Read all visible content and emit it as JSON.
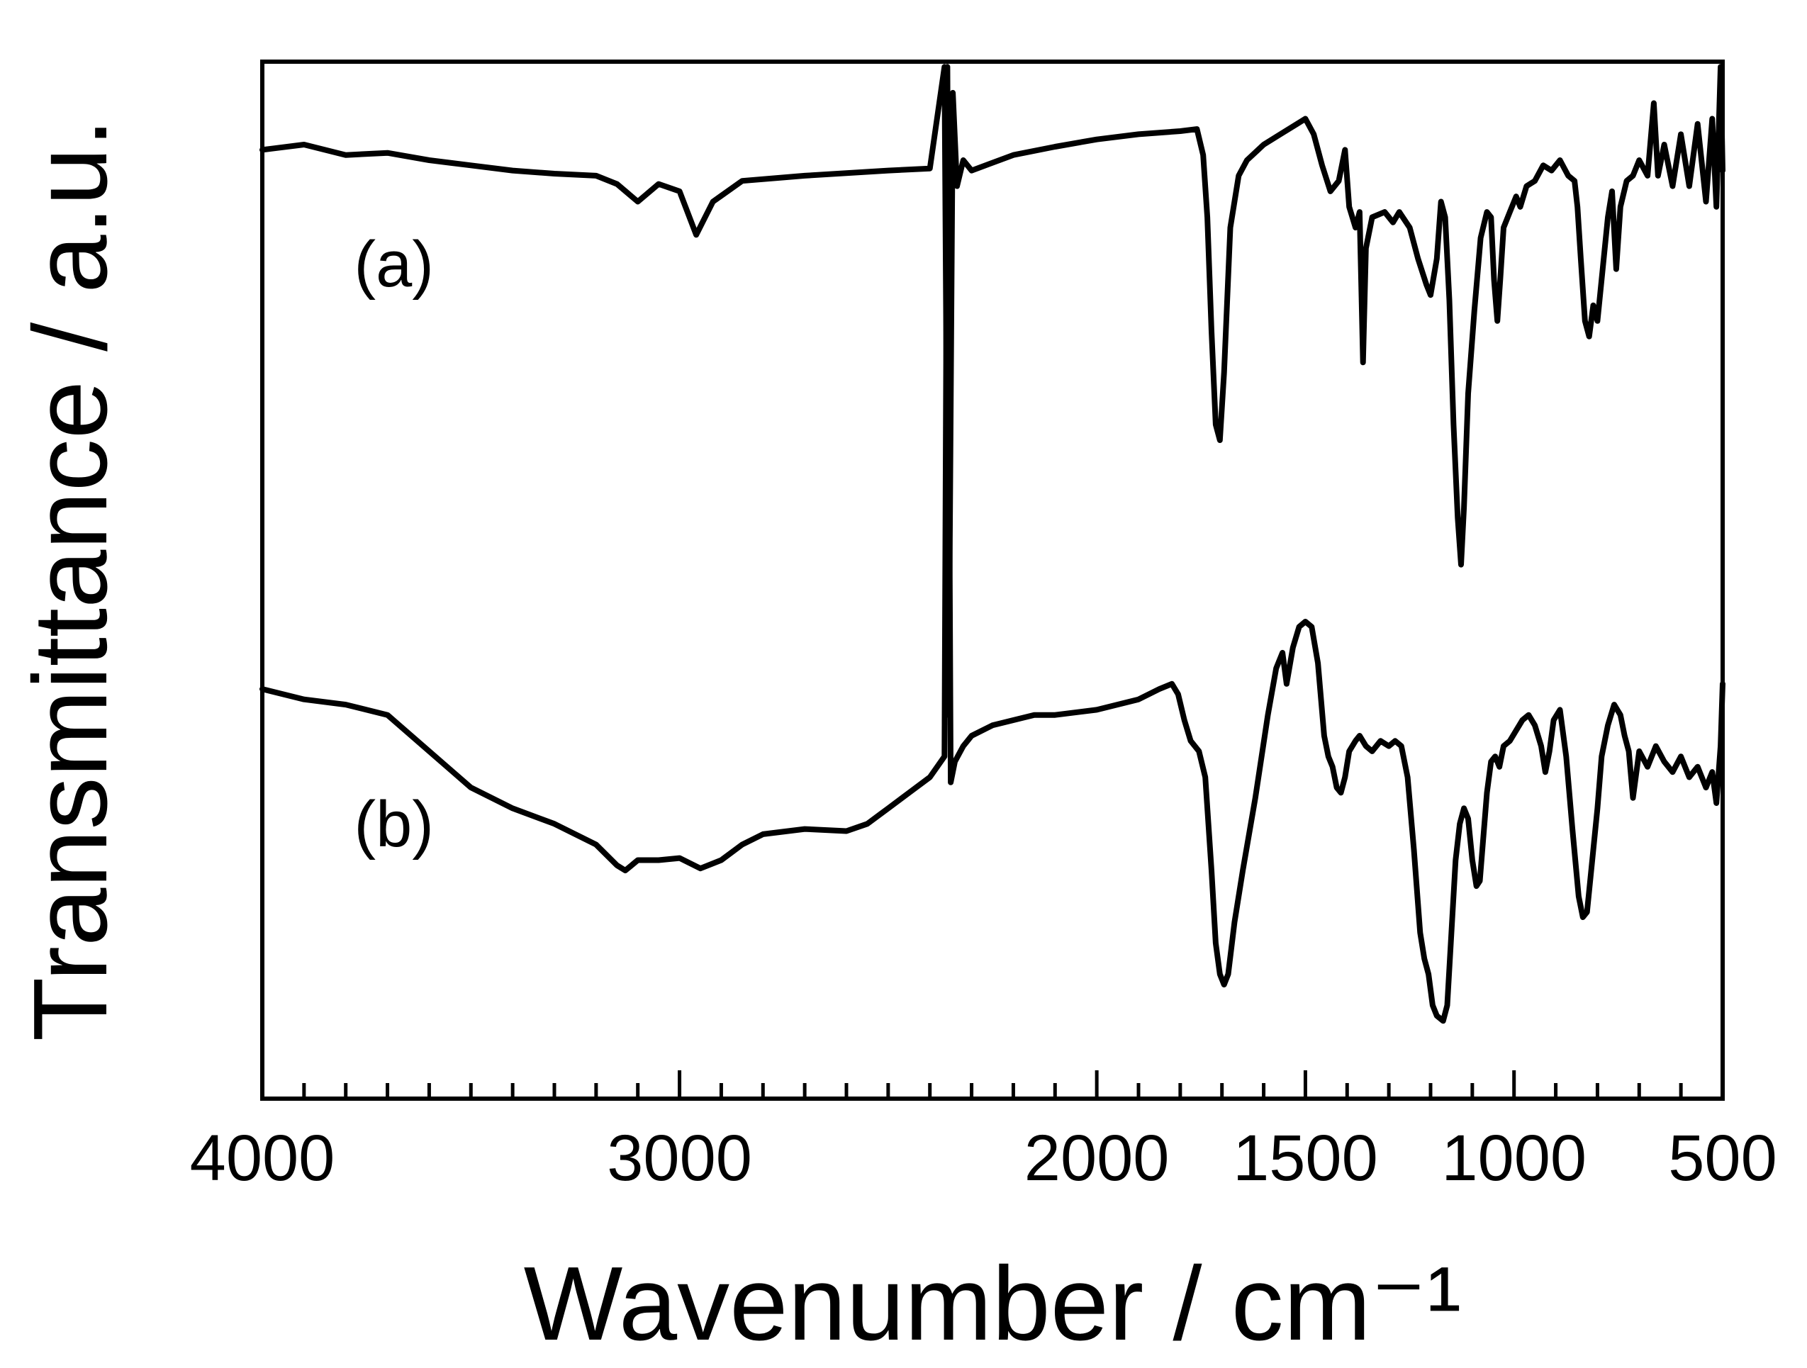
{
  "chart_data": {
    "type": "line",
    "title": "",
    "xlabel": "Wavenumber / cm⁻¹",
    "ylabel": "Transmittance / a.u.",
    "xlim": [
      4000,
      500
    ],
    "ylim": [
      0,
      100
    ],
    "x_ticks": [
      4000,
      3000,
      2000,
      1500,
      1000,
      500
    ],
    "x_tick_labels": [
      "4000",
      "3000",
      "2000",
      "1500",
      "1000",
      "500"
    ],
    "x_minor_step": 100,
    "grid": false,
    "legend": "none",
    "series": [
      {
        "name": "(a)",
        "label": "(a)",
        "color": "#000000",
        "points": [
          [
            4000,
            91.5
          ],
          [
            3900,
            92.0
          ],
          [
            3800,
            91.0
          ],
          [
            3700,
            91.2
          ],
          [
            3600,
            90.5
          ],
          [
            3500,
            90.0
          ],
          [
            3400,
            89.5
          ],
          [
            3300,
            89.2
          ],
          [
            3200,
            89.0
          ],
          [
            3150,
            88.2
          ],
          [
            3100,
            86.5
          ],
          [
            3050,
            88.2
          ],
          [
            3000,
            87.5
          ],
          [
            2960,
            83.3
          ],
          [
            2920,
            86.5
          ],
          [
            2850,
            88.5
          ],
          [
            2700,
            89.0
          ],
          [
            2500,
            89.5
          ],
          [
            2400,
            89.7
          ],
          [
            2365,
            99.5
          ],
          [
            2355,
            37.0
          ],
          [
            2345,
            97.0
          ],
          [
            2335,
            88.0
          ],
          [
            2320,
            90.5
          ],
          [
            2300,
            89.5
          ],
          [
            2200,
            91.0
          ],
          [
            2100,
            91.8
          ],
          [
            2000,
            92.5
          ],
          [
            1900,
            93.0
          ],
          [
            1800,
            93.3
          ],
          [
            1760,
            93.5
          ],
          [
            1745,
            91.0
          ],
          [
            1735,
            85.0
          ],
          [
            1725,
            74.0
          ],
          [
            1715,
            65.0
          ],
          [
            1705,
            63.5
          ],
          [
            1695,
            70.0
          ],
          [
            1680,
            84.0
          ],
          [
            1660,
            89.0
          ],
          [
            1640,
            90.5
          ],
          [
            1600,
            92.0
          ],
          [
            1560,
            93.0
          ],
          [
            1520,
            94.0
          ],
          [
            1500,
            94.5
          ],
          [
            1480,
            93.0
          ],
          [
            1460,
            90.0
          ],
          [
            1440,
            87.5
          ],
          [
            1420,
            88.5
          ],
          [
            1405,
            91.5
          ],
          [
            1395,
            86.0
          ],
          [
            1380,
            84.0
          ],
          [
            1370,
            85.5
          ],
          [
            1362,
            71.0
          ],
          [
            1355,
            82.0
          ],
          [
            1340,
            85.0
          ],
          [
            1310,
            85.5
          ],
          [
            1290,
            84.5
          ],
          [
            1275,
            85.5
          ],
          [
            1250,
            84.0
          ],
          [
            1230,
            81.0
          ],
          [
            1210,
            78.5
          ],
          [
            1200,
            77.5
          ],
          [
            1185,
            81.0
          ],
          [
            1175,
            86.5
          ],
          [
            1165,
            85.0
          ],
          [
            1155,
            77.0
          ],
          [
            1145,
            65.0
          ],
          [
            1135,
            56.0
          ],
          [
            1127,
            51.5
          ],
          [
            1120,
            57.0
          ],
          [
            1110,
            68.0
          ],
          [
            1095,
            76.0
          ],
          [
            1080,
            83.0
          ],
          [
            1065,
            85.5
          ],
          [
            1055,
            85.0
          ],
          [
            1048,
            79.0
          ],
          [
            1040,
            75.0
          ],
          [
            1033,
            79.0
          ],
          [
            1025,
            84.0
          ],
          [
            1010,
            85.5
          ],
          [
            995,
            87.0
          ],
          [
            985,
            86.0
          ],
          [
            970,
            88.0
          ],
          [
            950,
            88.5
          ],
          [
            930,
            90.0
          ],
          [
            910,
            89.5
          ],
          [
            890,
            90.5
          ],
          [
            870,
            89.0
          ],
          [
            855,
            88.5
          ],
          [
            848,
            86.0
          ],
          [
            840,
            81.0
          ],
          [
            830,
            75.0
          ],
          [
            820,
            73.5
          ],
          [
            810,
            76.5
          ],
          [
            800,
            75.0
          ],
          [
            790,
            79.0
          ],
          [
            775,
            85.0
          ],
          [
            765,
            87.5
          ],
          [
            755,
            80.0
          ],
          [
            745,
            86.0
          ],
          [
            730,
            88.5
          ],
          [
            715,
            89.0
          ],
          [
            700,
            90.5
          ],
          [
            680,
            89.0
          ],
          [
            665,
            96.0
          ],
          [
            655,
            89.0
          ],
          [
            640,
            92.0
          ],
          [
            620,
            88.0
          ],
          [
            600,
            93.0
          ],
          [
            580,
            88.0
          ],
          [
            560,
            94.0
          ],
          [
            540,
            86.5
          ],
          [
            525,
            94.5
          ],
          [
            515,
            86.0
          ],
          [
            505,
            99.5
          ],
          [
            500,
            89.5
          ]
        ]
      },
      {
        "name": "(b)",
        "label": "(b)",
        "color": "#000000",
        "points": [
          [
            4000,
            39.5
          ],
          [
            3900,
            38.5
          ],
          [
            3800,
            38.0
          ],
          [
            3700,
            37.0
          ],
          [
            3600,
            33.5
          ],
          [
            3500,
            30.0
          ],
          [
            3400,
            28.0
          ],
          [
            3300,
            26.5
          ],
          [
            3200,
            24.5
          ],
          [
            3150,
            22.5
          ],
          [
            3130,
            22.0
          ],
          [
            3100,
            23.0
          ],
          [
            3050,
            23.0
          ],
          [
            3000,
            23.2
          ],
          [
            2950,
            22.2
          ],
          [
            2900,
            23.0
          ],
          [
            2850,
            24.5
          ],
          [
            2800,
            25.5
          ],
          [
            2700,
            26.0
          ],
          [
            2600,
            25.8
          ],
          [
            2550,
            26.5
          ],
          [
            2500,
            28.0
          ],
          [
            2450,
            29.5
          ],
          [
            2400,
            31.0
          ],
          [
            2365,
            33.0
          ],
          [
            2358,
            99.5
          ],
          [
            2350,
            30.5
          ],
          [
            2340,
            32.5
          ],
          [
            2320,
            34.0
          ],
          [
            2300,
            35.0
          ],
          [
            2250,
            36.0
          ],
          [
            2200,
            36.5
          ],
          [
            2150,
            37.0
          ],
          [
            2100,
            37.0
          ],
          [
            2000,
            37.5
          ],
          [
            1900,
            38.5
          ],
          [
            1850,
            39.5
          ],
          [
            1820,
            40.0
          ],
          [
            1805,
            39.0
          ],
          [
            1790,
            36.5
          ],
          [
            1775,
            34.5
          ],
          [
            1755,
            33.5
          ],
          [
            1740,
            31.0
          ],
          [
            1725,
            22.0
          ],
          [
            1715,
            15.0
          ],
          [
            1705,
            12.0
          ],
          [
            1695,
            11.0
          ],
          [
            1685,
            12.0
          ],
          [
            1670,
            17.0
          ],
          [
            1650,
            22.0
          ],
          [
            1620,
            29.0
          ],
          [
            1590,
            37.0
          ],
          [
            1570,
            41.5
          ],
          [
            1555,
            43.0
          ],
          [
            1545,
            40.0
          ],
          [
            1530,
            43.5
          ],
          [
            1515,
            45.5
          ],
          [
            1500,
            46.0
          ],
          [
            1485,
            45.5
          ],
          [
            1470,
            42.0
          ],
          [
            1455,
            35.0
          ],
          [
            1445,
            33.0
          ],
          [
            1435,
            32.0
          ],
          [
            1425,
            30.0
          ],
          [
            1415,
            29.5
          ],
          [
            1405,
            31.0
          ],
          [
            1395,
            33.5
          ],
          [
            1380,
            34.5
          ],
          [
            1370,
            35.0
          ],
          [
            1355,
            34.0
          ],
          [
            1340,
            33.5
          ],
          [
            1320,
            34.5
          ],
          [
            1300,
            34.0
          ],
          [
            1285,
            34.5
          ],
          [
            1270,
            34.0
          ],
          [
            1255,
            31.0
          ],
          [
            1240,
            24.0
          ],
          [
            1225,
            16.0
          ],
          [
            1215,
            13.5
          ],
          [
            1205,
            12.0
          ],
          [
            1195,
            9.0
          ],
          [
            1185,
            8.0
          ],
          [
            1170,
            7.5
          ],
          [
            1160,
            9.0
          ],
          [
            1150,
            16.0
          ],
          [
            1140,
            23.0
          ],
          [
            1130,
            26.5
          ],
          [
            1120,
            28.0
          ],
          [
            1110,
            27.0
          ],
          [
            1100,
            23.0
          ],
          [
            1090,
            20.5
          ],
          [
            1082,
            21.0
          ],
          [
            1075,
            24.5
          ],
          [
            1065,
            29.5
          ],
          [
            1055,
            32.5
          ],
          [
            1045,
            33.0
          ],
          [
            1035,
            32.0
          ],
          [
            1025,
            34.0
          ],
          [
            1010,
            34.5
          ],
          [
            995,
            35.5
          ],
          [
            980,
            36.5
          ],
          [
            965,
            37.0
          ],
          [
            950,
            36.0
          ],
          [
            935,
            34.0
          ],
          [
            925,
            31.5
          ],
          [
            915,
            33.5
          ],
          [
            905,
            36.5
          ],
          [
            890,
            37.5
          ],
          [
            875,
            33.0
          ],
          [
            860,
            26.0
          ],
          [
            845,
            19.5
          ],
          [
            835,
            17.5
          ],
          [
            825,
            18.0
          ],
          [
            815,
            22.0
          ],
          [
            800,
            28.0
          ],
          [
            790,
            33.0
          ],
          [
            775,
            36.0
          ],
          [
            760,
            38.0
          ],
          [
            745,
            37.0
          ],
          [
            735,
            35.0
          ],
          [
            725,
            33.5
          ],
          [
            715,
            29.0
          ],
          [
            700,
            33.5
          ],
          [
            680,
            32.0
          ],
          [
            660,
            34.0
          ],
          [
            640,
            32.5
          ],
          [
            620,
            31.5
          ],
          [
            600,
            33.0
          ],
          [
            580,
            31.0
          ],
          [
            560,
            32.0
          ],
          [
            540,
            30.0
          ],
          [
            525,
            31.5
          ],
          [
            515,
            28.5
          ],
          [
            505,
            34.0
          ],
          [
            500,
            40.0
          ]
        ]
      }
    ]
  }
}
